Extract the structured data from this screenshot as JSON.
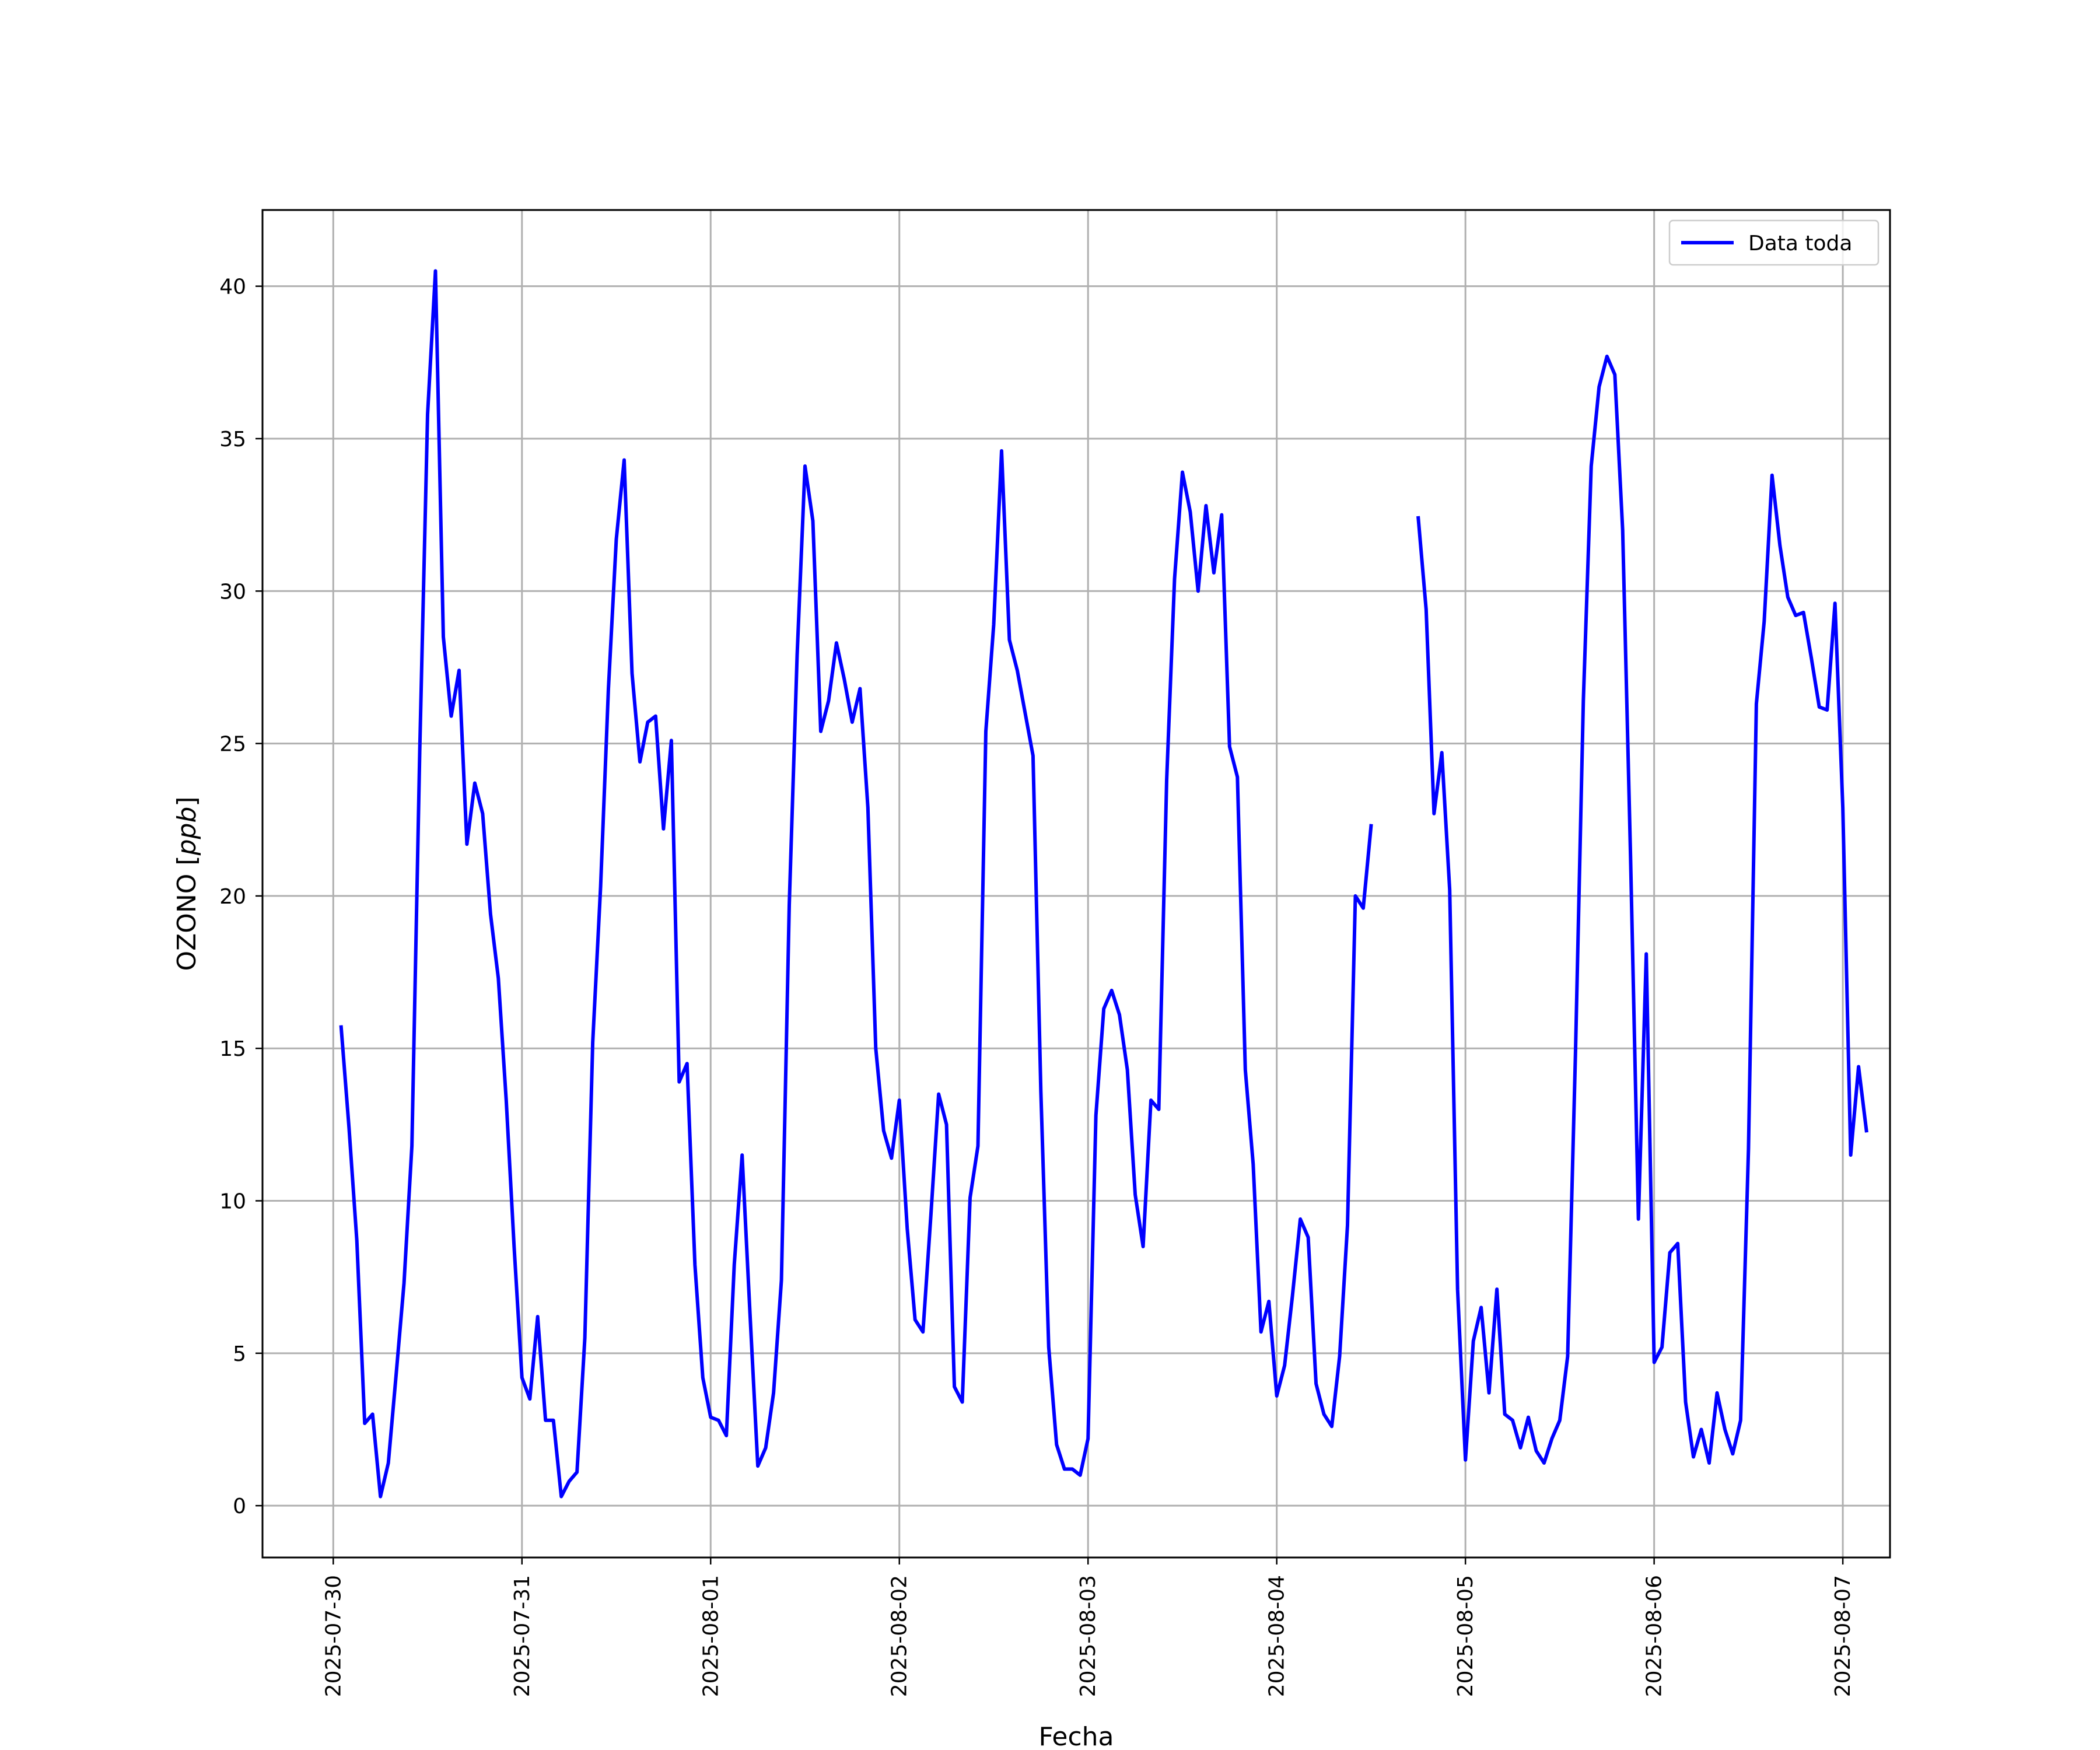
{
  "chart_data": {
    "type": "line",
    "title": "",
    "xlabel": "Fecha",
    "ylabel": "OZONO [ppb]",
    "ylabel_main": "OZONO ",
    "ylabel_unit": "ppb",
    "xlim": [
      "2025-07-29T15:00",
      "2025-08-07T06:00"
    ],
    "ylim": [
      -1.7,
      42.5
    ],
    "x_ticks": [
      "2025-07-30",
      "2025-07-31",
      "2025-08-01",
      "2025-08-02",
      "2025-08-03",
      "2025-08-04",
      "2025-08-05",
      "2025-08-06",
      "2025-08-07"
    ],
    "y_ticks": [
      0,
      5,
      10,
      15,
      20,
      25,
      30,
      35,
      40
    ],
    "y_tick_labels": [
      "0",
      "5",
      "10",
      "15",
      "20",
      "25",
      "30",
      "35",
      "40"
    ],
    "grid": true,
    "legend_position": "top-right",
    "series": [
      {
        "name": "Data toda",
        "color": "#0000ff",
        "x_start": "2025-07-30T01:00",
        "x_step_hours": 1,
        "values": [
          15.7,
          12.4,
          8.7,
          2.7,
          3.0,
          0.3,
          1.4,
          4.3,
          7.3,
          11.8,
          24.8,
          35.8,
          40.5,
          28.5,
          25.9,
          27.4,
          21.7,
          23.7,
          22.7,
          19.4,
          17.3,
          13.3,
          8.5,
          4.2,
          3.5,
          6.2,
          2.8,
          2.8,
          0.3,
          0.8,
          1.1,
          5.5,
          15.2,
          20.3,
          26.8,
          31.7,
          34.3,
          27.3,
          24.4,
          25.7,
          25.9,
          22.2,
          25.1,
          13.9,
          14.5,
          7.9,
          4.2,
          2.9,
          2.8,
          2.3,
          7.9,
          11.5,
          6.3,
          1.3,
          1.9,
          3.7,
          7.4,
          19.7,
          27.9,
          34.1,
          32.3,
          25.4,
          26.4,
          28.3,
          27.1,
          25.7,
          26.8,
          22.9,
          15.0,
          12.3,
          11.4,
          13.3,
          9.1,
          6.1,
          5.7,
          9.5,
          13.5,
          12.5,
          3.9,
          3.4,
          10.1,
          11.8,
          25.4,
          28.9,
          34.6,
          28.4,
          27.4,
          26.0,
          24.6,
          13.6,
          5.2,
          2.0,
          1.2,
          1.2,
          1.0,
          2.2,
          12.8,
          16.3,
          16.9,
          16.1,
          14.3,
          10.2,
          8.5,
          13.3,
          13.0,
          23.8,
          30.4,
          33.9,
          32.6,
          30.0,
          32.8,
          30.6,
          32.5,
          24.9,
          23.9,
          14.3,
          11.2,
          5.7,
          6.7,
          3.6,
          4.6,
          6.9,
          9.4,
          8.8,
          4.0,
          3.0,
          2.6,
          4.9,
          9.2,
          20.0,
          19.6,
          22.3,
          null,
          null,
          null,
          null,
          null,
          32.4,
          29.4,
          22.7,
          24.7,
          20.2,
          7.1,
          1.5,
          5.4,
          6.5,
          3.7,
          7.1,
          3.0,
          2.8,
          1.9,
          2.9,
          1.8,
          1.4,
          2.2,
          2.8,
          4.9,
          14.9,
          26.4,
          34.1,
          36.7,
          37.7,
          37.1,
          32.0,
          21.3,
          9.4,
          18.1,
          4.7,
          5.2,
          8.3,
          8.6,
          3.4,
          1.6,
          2.5,
          1.4,
          3.7,
          2.5,
          1.7,
          2.8,
          11.7,
          26.3,
          29.0,
          33.8,
          31.5,
          29.8,
          29.2,
          29.3,
          27.8,
          26.2,
          26.1,
          29.6,
          22.9,
          11.5,
          14.4,
          12.3
        ]
      }
    ]
  }
}
